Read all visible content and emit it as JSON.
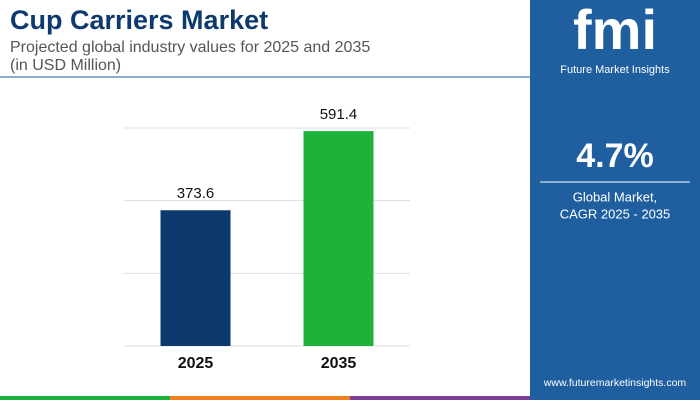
{
  "chart_data": {
    "type": "bar",
    "title": "Cup Carriers Market",
    "subtitle": [
      "Projected global industry values for 2025 and 2035",
      "(in USD Million)"
    ],
    "categories": [
      "2025",
      "2035"
    ],
    "values": [
      373.6,
      591.4
    ],
    "colors": [
      "#0d3a6e",
      "#1db33a"
    ],
    "ylim": [
      0,
      600
    ],
    "yticks": [
      0,
      200,
      400,
      600
    ],
    "grid": true
  },
  "panel": {
    "logo": "fmi",
    "logo_tagline": "Future Market Insights",
    "cagr": "4.7%",
    "cagr_label": [
      "Global Market,",
      "CAGR 2025 - 2035"
    ],
    "website": "www.futuremarketinsights.com"
  }
}
